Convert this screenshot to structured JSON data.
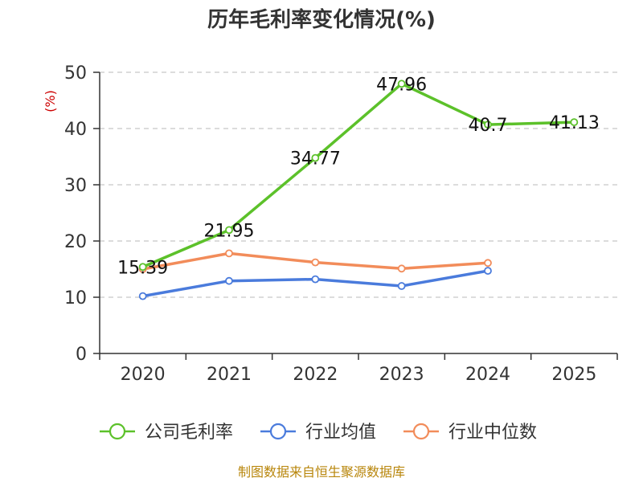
{
  "chart_data": {
    "type": "line",
    "title": "历年毛利率变化情况(%)",
    "ylabel": "(%)",
    "xlabel": "",
    "categories": [
      "2020",
      "2021",
      "2022",
      "2023",
      "2024",
      "2025"
    ],
    "ylim": [
      0,
      50
    ],
    "yticks": [
      0,
      10,
      20,
      30,
      40,
      50
    ],
    "grid": true,
    "legend_position": "bottom",
    "series": [
      {
        "name": "公司毛利率",
        "color": "#5cc12a",
        "values": [
          15.39,
          21.95,
          34.77,
          47.96,
          40.7,
          41.13
        ],
        "labels": [
          "15.39",
          "21.95",
          "34.77",
          "47.96",
          "40.7",
          "41.13"
        ]
      },
      {
        "name": "行业均值",
        "color": "#4a7bdc",
        "values": [
          10.2,
          12.9,
          13.2,
          12.0,
          14.7,
          null
        ]
      },
      {
        "name": "行业中位数",
        "color": "#f28c5a",
        "values": [
          15.0,
          17.8,
          16.2,
          15.1,
          16.1,
          null
        ]
      }
    ]
  },
  "source": "制图数据来自恒生聚源数据库"
}
